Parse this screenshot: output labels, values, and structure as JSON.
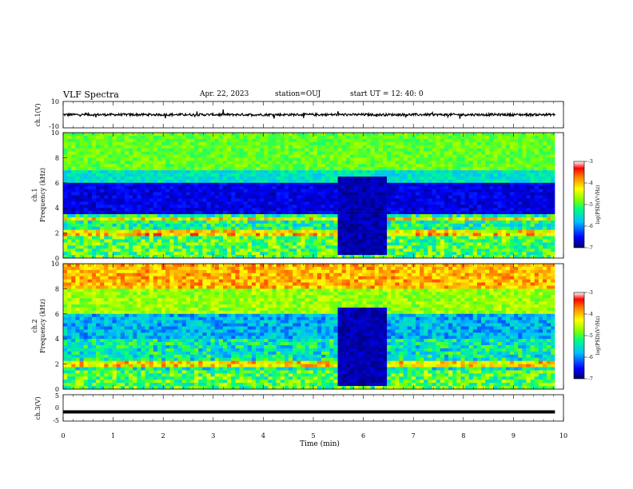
{
  "header": {
    "title": "VLF Spectra",
    "date": "Apr. 22, 2023",
    "station": "station=OUJ",
    "start": "start  UT =   12: 40: 0"
  },
  "chart_data": [
    {
      "id": "ch1_waveform",
      "type": "line",
      "ylabel": "ch.1(V)",
      "ylim": [
        -10,
        10
      ],
      "yticks": [
        "10",
        "-10"
      ],
      "xlim": [
        0,
        10
      ],
      "x_data_end": 9.83,
      "baseline_y": 0
    },
    {
      "id": "ch1_spectrogram",
      "type": "heatmap",
      "ylabel": "ch.1\nFrequency (kHz)",
      "ylim": [
        0,
        10
      ],
      "yticks": [
        "0",
        "2",
        "4",
        "6",
        "8",
        "10"
      ],
      "xlim": [
        0,
        10
      ],
      "x_data_end": 9.83,
      "gap_minutes": [
        5.5,
        6.48
      ],
      "colorbar": {
        "label": "log(PSD)(V²/Hz)",
        "range": [
          -7,
          -3
        ],
        "ticks": [
          "-3",
          "-4",
          "-5",
          "-6",
          "-7"
        ]
      }
    },
    {
      "id": "ch2_spectrogram",
      "type": "heatmap",
      "ylabel": "ch.2\nFrequency (kHz)",
      "ylim": [
        0,
        10
      ],
      "yticks": [
        "0",
        "2",
        "4",
        "6",
        "8",
        "10"
      ],
      "xlim": [
        0,
        10
      ],
      "x_data_end": 9.83,
      "gap_minutes": [
        5.5,
        6.48
      ],
      "colorbar": {
        "label": "log(PSD)(V²/Hz)",
        "range": [
          -7,
          -3
        ],
        "ticks": [
          "-3",
          "-4",
          "-5",
          "-6",
          "-7"
        ]
      }
    },
    {
      "id": "ch3_waveform",
      "type": "line",
      "ylabel": "ch.3(V)",
      "ylim": [
        -5,
        5
      ],
      "yticks": [
        "5",
        "0",
        "-5"
      ],
      "xlim": [
        0,
        10
      ],
      "x_data_end": 9.83,
      "baseline_y": -1.5
    }
  ],
  "x_axis": {
    "label": "Time (min)",
    "ticks": [
      "0",
      "1",
      "2",
      "3",
      "4",
      "5",
      "6",
      "7",
      "8",
      "9",
      "10"
    ]
  },
  "colors": {
    "trace": "#000000",
    "gap": "#0b1a80"
  }
}
